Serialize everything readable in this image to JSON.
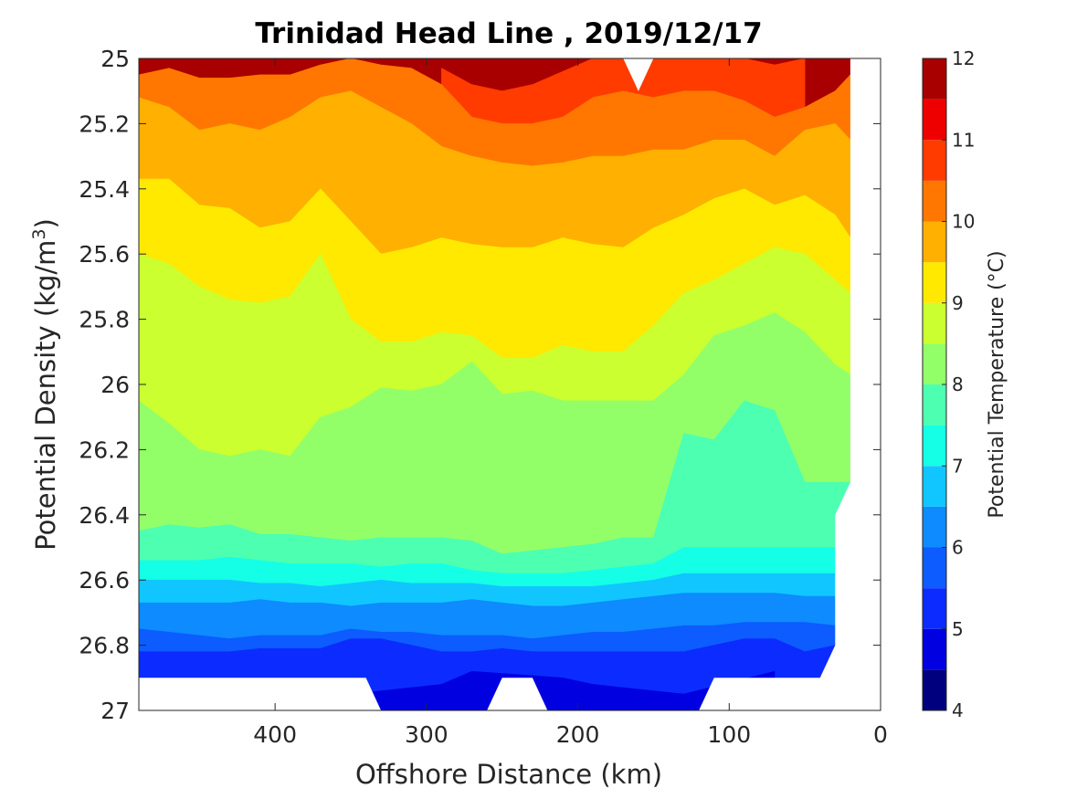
{
  "chart_data": {
    "type": "heatmap",
    "subtype": "filled-contour",
    "title": "Trinidad Head Line , 2019/12/17",
    "xlabel": "Offshore Distance (km)",
    "ylabel": "Potential Density (kg/m",
    "ylabel_sup": "3",
    "ylabel_end": ")",
    "xlim": [
      490,
      0
    ],
    "x_reversed": true,
    "ylim": [
      25,
      27
    ],
    "y_reversed": true,
    "xticks": [
      400,
      300,
      200,
      100,
      0
    ],
    "yticks": [
      25,
      25.2,
      25.4,
      25.6,
      25.8,
      26,
      26.2,
      26.4,
      26.6,
      26.8,
      27
    ],
    "colorbar": {
      "label": "Potential Temperature (°C)",
      "levels": [
        4,
        4.5,
        5,
        5.5,
        6,
        6.5,
        7,
        7.5,
        8,
        8.5,
        9,
        9.5,
        10,
        10.5,
        11,
        11.5,
        12
      ],
      "ticks": [
        4,
        5,
        6,
        7,
        8,
        9,
        10,
        11,
        12
      ],
      "colors": [
        "#00007f",
        "#0000e0",
        "#0c2cff",
        "#0d5cff",
        "#0d8bff",
        "#11c6ff",
        "#15ffe6",
        "#4dffb0",
        "#93ff68",
        "#cbff2f",
        "#ffe900",
        "#ffb000",
        "#ff7700",
        "#ff3b00",
        "#ee0000",
        "#a80000"
      ]
    },
    "x_grid": [
      490,
      470,
      450,
      430,
      410,
      390,
      370,
      350,
      330,
      310,
      290,
      270,
      250,
      230,
      210,
      190,
      170,
      150,
      130,
      110,
      90,
      70,
      50,
      30,
      20
    ],
    "isolines": [
      {
        "level": 11.5,
        "y": [
          null,
          null,
          null,
          null,
          null,
          null,
          null,
          null,
          null,
          null,
          null,
          null,
          null,
          null,
          null,
          null,
          null,
          null,
          null,
          null,
          null,
          25.03,
          25.0,
          null,
          null
        ]
      },
      {
        "level": 11,
        "y": [
          null,
          null,
          null,
          null,
          null,
          null,
          null,
          null,
          null,
          null,
          25.03,
          25.08,
          25.1,
          25.08,
          25.04,
          25.0,
          25.0,
          25.0,
          25.0,
          25.0,
          25.0,
          25.02,
          25.0,
          null,
          null
        ]
      },
      {
        "level": 10.5,
        "y": [
          25.05,
          25.03,
          25.06,
          25.06,
          25.05,
          25.05,
          25.02,
          25.0,
          25.02,
          25.03,
          25.08,
          25.18,
          25.2,
          25.2,
          25.18,
          25.12,
          25.1,
          25.12,
          25.1,
          25.1,
          25.13,
          25.18,
          25.15,
          25.1,
          25.05
        ]
      },
      {
        "level": 10,
        "y": [
          25.12,
          25.15,
          25.22,
          25.2,
          25.22,
          25.18,
          25.12,
          25.1,
          25.15,
          25.2,
          25.27,
          25.3,
          25.32,
          25.33,
          25.32,
          25.3,
          25.3,
          25.28,
          25.28,
          25.25,
          25.25,
          25.3,
          25.22,
          25.2,
          25.25
        ]
      },
      {
        "level": 9.5,
        "y": [
          25.37,
          25.37,
          25.45,
          25.46,
          25.52,
          25.5,
          25.4,
          25.5,
          25.6,
          25.58,
          25.55,
          25.57,
          25.58,
          25.58,
          25.55,
          25.57,
          25.58,
          25.52,
          25.48,
          25.43,
          25.4,
          25.45,
          25.42,
          25.48,
          25.55
        ]
      },
      {
        "level": 9,
        "y": [
          25.6,
          25.63,
          25.7,
          25.74,
          25.75,
          25.73,
          25.6,
          25.8,
          25.87,
          25.87,
          25.84,
          25.85,
          25.92,
          25.92,
          25.88,
          25.9,
          25.9,
          25.82,
          25.72,
          25.68,
          25.63,
          25.58,
          25.6,
          25.68,
          25.72
        ]
      },
      {
        "level": 8.5,
        "y": [
          26.05,
          26.12,
          26.2,
          26.22,
          26.2,
          26.22,
          26.1,
          26.07,
          26.01,
          26.02,
          26.0,
          25.93,
          26.03,
          26.02,
          26.05,
          26.05,
          26.05,
          26.05,
          25.97,
          25.85,
          25.82,
          25.78,
          25.84,
          25.94,
          25.97
        ]
      },
      {
        "level": 8,
        "y": [
          26.45,
          26.43,
          26.44,
          26.43,
          26.46,
          26.46,
          26.47,
          26.48,
          26.47,
          26.47,
          26.47,
          26.48,
          26.52,
          26.51,
          26.5,
          26.49,
          26.47,
          26.47,
          26.15,
          26.17,
          26.05,
          26.08,
          26.3,
          26.3,
          26.3
        ]
      },
      {
        "level": 7.5,
        "y": [
          26.54,
          26.54,
          26.54,
          26.53,
          26.54,
          26.55,
          26.55,
          26.55,
          26.56,
          26.55,
          26.55,
          26.57,
          26.58,
          26.58,
          26.58,
          26.57,
          26.56,
          26.55,
          26.5,
          26.5,
          26.5,
          26.5,
          26.5,
          26.5,
          null
        ]
      },
      {
        "level": 7,
        "y": [
          26.6,
          26.6,
          26.6,
          26.6,
          26.61,
          26.61,
          26.62,
          26.61,
          26.6,
          26.61,
          26.61,
          26.61,
          26.62,
          26.62,
          26.62,
          26.62,
          26.61,
          26.6,
          26.58,
          26.58,
          26.58,
          26.58,
          26.58,
          26.58,
          null
        ]
      },
      {
        "level": 6.5,
        "y": [
          26.67,
          26.67,
          26.67,
          26.67,
          26.66,
          26.67,
          26.67,
          26.68,
          26.67,
          26.67,
          26.67,
          26.66,
          26.67,
          26.68,
          26.68,
          26.67,
          26.66,
          26.65,
          26.64,
          26.64,
          26.64,
          26.64,
          26.65,
          26.65,
          null
        ]
      },
      {
        "level": 6,
        "y": [
          26.75,
          26.76,
          26.77,
          26.78,
          26.77,
          26.77,
          26.77,
          26.75,
          26.76,
          26.76,
          26.77,
          26.77,
          26.77,
          26.78,
          26.77,
          26.76,
          26.76,
          26.75,
          26.74,
          26.74,
          26.73,
          26.73,
          26.73,
          26.74,
          null
        ]
      },
      {
        "level": 5.5,
        "y": [
          26.82,
          26.82,
          26.82,
          26.82,
          26.81,
          26.81,
          26.81,
          26.78,
          26.78,
          26.8,
          26.82,
          26.82,
          26.81,
          26.82,
          26.82,
          26.82,
          26.82,
          26.82,
          26.82,
          26.8,
          26.78,
          26.78,
          26.82,
          26.8,
          null
        ]
      },
      {
        "level": 5,
        "y": [
          null,
          null,
          null,
          null,
          null,
          null,
          null,
          26.95,
          26.94,
          26.93,
          26.92,
          26.88,
          null,
          null,
          26.9,
          26.92,
          26.93,
          26.94,
          26.95,
          null,
          null,
          26.88,
          null,
          null,
          null
        ]
      }
    ],
    "data_extent": {
      "x_max": [
        490,
        490,
        490,
        490,
        490,
        490,
        490,
        490,
        490,
        490,
        490,
        490,
        490,
        490,
        490,
        490,
        490,
        490,
        490,
        490,
        490,
        490,
        490,
        490,
        490
      ],
      "x_min_by_y": [
        [
          25.0,
          20
        ],
        [
          26.3,
          20
        ],
        [
          26.4,
          30
        ],
        [
          26.8,
          30
        ],
        [
          26.9,
          40
        ]
      ],
      "y_max_by_x": [
        [
          490,
          26.9
        ],
        [
          340,
          26.9
        ],
        [
          330,
          27.0
        ],
        [
          260,
          27.0
        ],
        [
          250,
          26.9
        ],
        [
          230,
          26.9
        ],
        [
          220,
          27.0
        ],
        [
          120,
          27.0
        ],
        [
          110,
          26.9
        ],
        [
          40,
          26.9
        ]
      ],
      "top_notch": {
        "x": [
          170,
          160,
          150
        ],
        "y": [
          25.0,
          25.1,
          25.0
        ]
      }
    }
  }
}
